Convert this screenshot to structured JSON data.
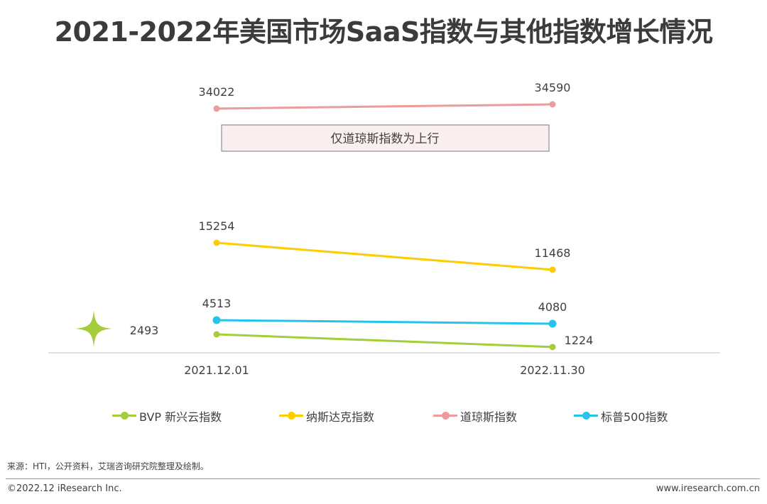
{
  "title": "2021-2022年美国市场SaaS指数与其他指数增长情况",
  "chart_data": {
    "type": "line",
    "categories": [
      "2021.12.01",
      "2022.11.30"
    ],
    "series": [
      {
        "name": "道琼斯指数",
        "values": [
          34022,
          34590
        ],
        "color": "#EE9B9B"
      },
      {
        "name": "纳斯达克指数",
        "values": [
          15254,
          11468
        ],
        "color": "#FFCC00"
      },
      {
        "name": "标普500指数",
        "values": [
          4513,
          4080
        ],
        "color": "#26C4EC"
      },
      {
        "name": "BVP 新兴云指数",
        "values": [
          2493,
          1224
        ],
        "color": "#A3CD3A"
      }
    ],
    "annotation": "仅道琼斯指数为上行",
    "grid": false,
    "legend_position": "bottom"
  },
  "legend": [
    {
      "label": "BVP 新兴云指数",
      "color": "#A3CD3A"
    },
    {
      "label": "纳斯达克指数",
      "color": "#FFCC00"
    },
    {
      "label": "道琼斯指数",
      "color": "#EE9B9B"
    },
    {
      "label": "标普500指数",
      "color": "#26C4EC"
    }
  ],
  "footer": {
    "source": "来源：HTI，公开资料，艾瑞咨询研究院整理及绘制。",
    "copyright": "©2022.12 iResearch Inc.",
    "website": "www.iresearch.com.cn"
  }
}
